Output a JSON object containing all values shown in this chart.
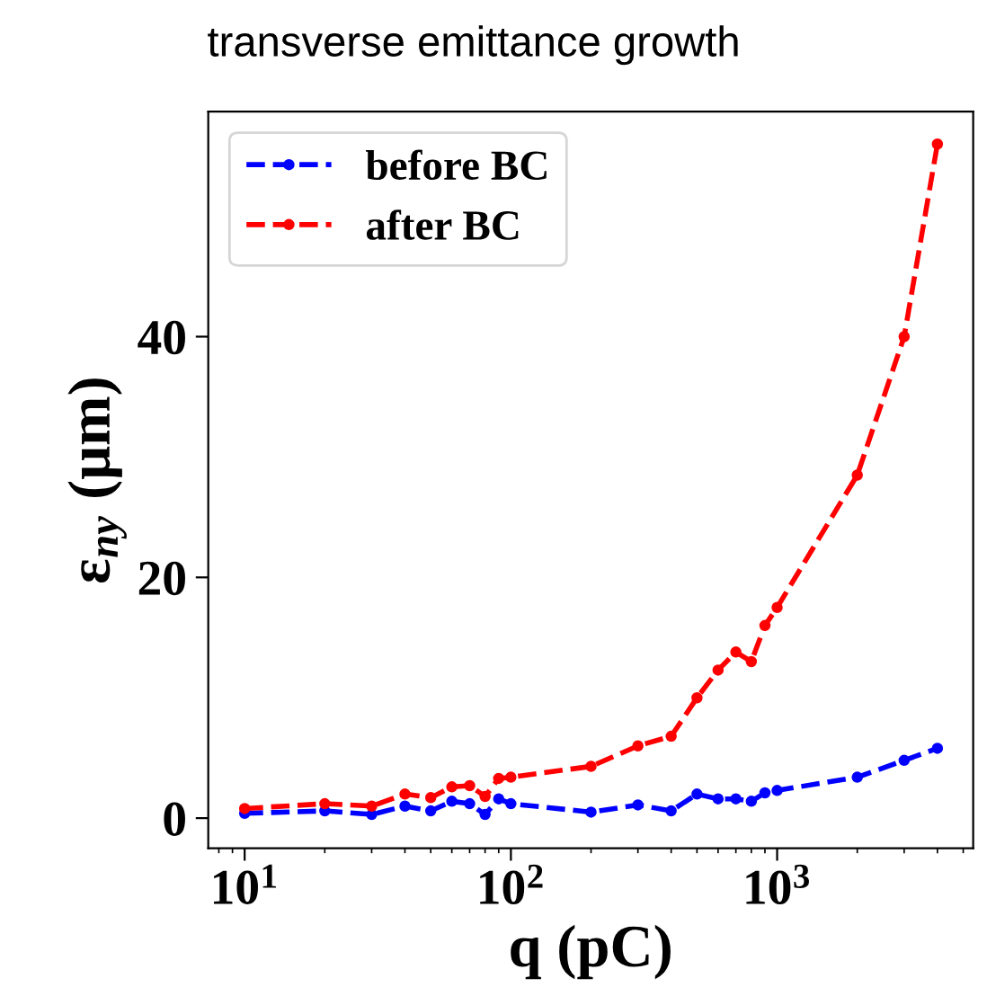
{
  "chart_data": {
    "type": "line",
    "title": "transverse emittance growth",
    "xlabel": "q (pC)",
    "ylabel": "ε$_{ny}$ (μm)",
    "log": "x",
    "xlim": [
      7.3,
      5450
    ],
    "xticks": [
      {
        "value": 10,
        "label": "10$^{1}$"
      },
      {
        "value": 100,
        "label": "10$^{2}$"
      },
      {
        "value": 1000,
        "label": "10$^{3}$"
      }
    ],
    "ylim": [
      -2.5,
      58.7
    ],
    "yticks": [
      0,
      20,
      40
    ],
    "grid": false,
    "legend": "top left",
    "marker": "circle",
    "line_style": "dashed",
    "x": [
      10,
      20,
      30,
      40,
      50,
      60,
      70,
      80,
      90,
      100,
      200,
      300,
      400,
      500,
      600,
      700,
      800,
      900,
      1000,
      2000,
      3000,
      4000
    ],
    "series": [
      {
        "name": "before BC",
        "color": "#0000ff",
        "values": [
          0.4,
          0.6,
          0.3,
          1.0,
          0.6,
          1.4,
          1.2,
          0.3,
          1.6,
          1.2,
          0.5,
          1.1,
          0.6,
          2.0,
          1.6,
          1.6,
          1.4,
          2.1,
          2.3,
          3.4,
          4.8,
          5.8
        ]
      },
      {
        "name": "after BC",
        "color": "#ff0000",
        "values": [
          0.8,
          1.2,
          1.0,
          2.0,
          1.7,
          2.6,
          2.7,
          1.8,
          3.3,
          3.4,
          4.3,
          6.0,
          6.8,
          10,
          12.3,
          13.8,
          13.0,
          16,
          17.5,
          28.5,
          40,
          56
        ]
      }
    ]
  }
}
